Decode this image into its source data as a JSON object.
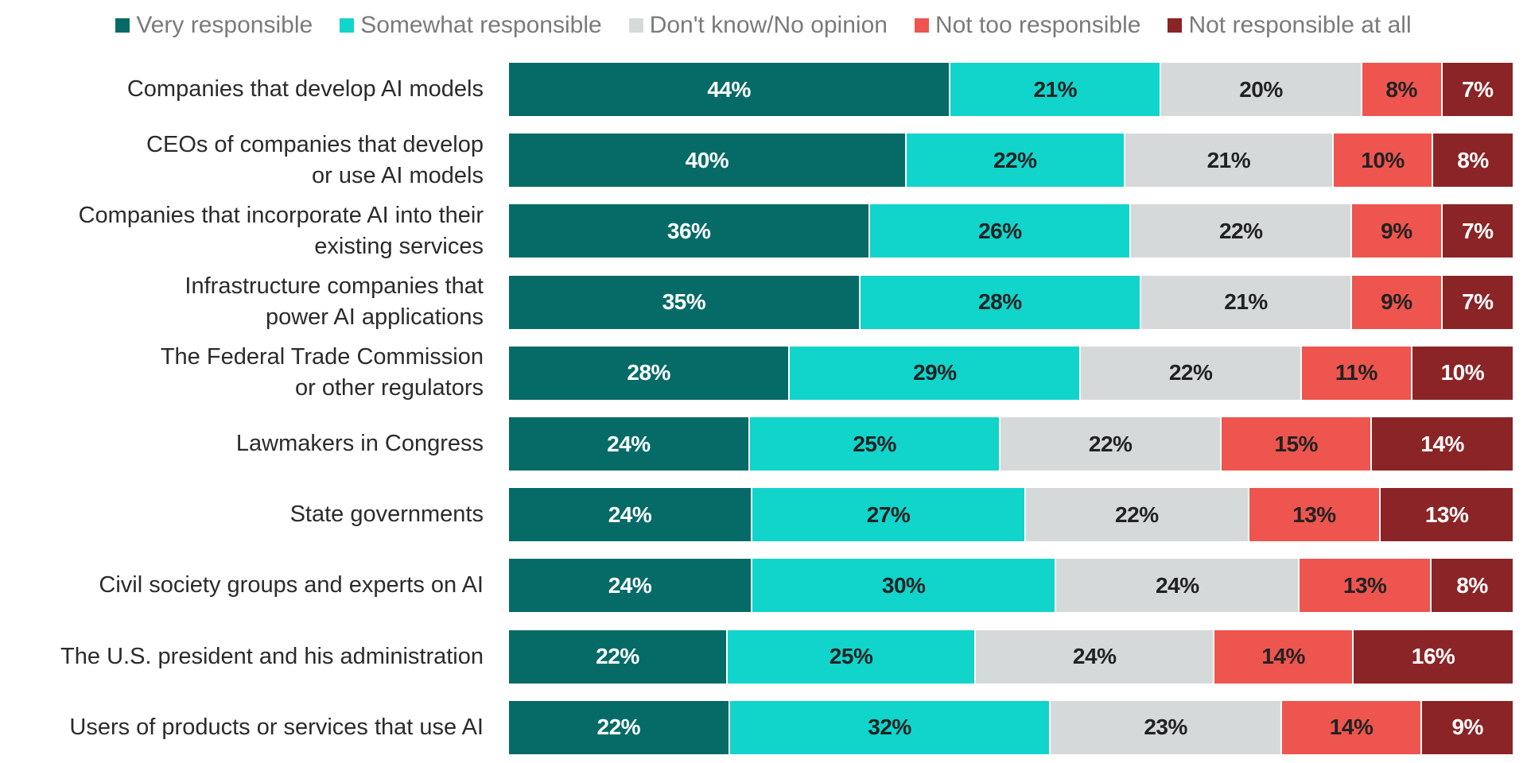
{
  "chart_data": {
    "type": "bar",
    "orientation": "horizontal",
    "stacked": true,
    "legend_position": "top",
    "series_names": [
      "Very responsible",
      "Somewhat responsible",
      "Don't know/No opinion",
      "Not too responsible",
      "Not responsible at all"
    ],
    "colors": [
      "#066b67",
      "#11d4cb",
      "#d6d9da",
      "#ee554e",
      "#8b2426"
    ],
    "label_colors": [
      "#ffffff",
      "#222222",
      "#222222",
      "#222222",
      "#ffffff"
    ],
    "categories": [
      [
        "Companies that develop AI models"
      ],
      [
        "CEOs of companies that develop",
        "or use AI models"
      ],
      [
        "Companies that incorporate AI into their",
        "existing services"
      ],
      [
        "Infrastructure companies that",
        "power AI applications"
      ],
      [
        "The Federal Trade Commission",
        "or other regulators"
      ],
      [
        "Lawmakers in Congress"
      ],
      [
        "State governments"
      ],
      [
        "Civil society groups and experts on AI"
      ],
      [
        "The U.S. president and his administration"
      ],
      [
        "Users of products or services that use AI"
      ]
    ],
    "values": [
      [
        44,
        21,
        20,
        8,
        7
      ],
      [
        40,
        22,
        21,
        10,
        8
      ],
      [
        36,
        26,
        22,
        9,
        7
      ],
      [
        35,
        28,
        21,
        9,
        7
      ],
      [
        28,
        29,
        22,
        11,
        10
      ],
      [
        24,
        25,
        22,
        15,
        14
      ],
      [
        24,
        27,
        22,
        13,
        13
      ],
      [
        24,
        30,
        24,
        13,
        8
      ],
      [
        22,
        25,
        24,
        14,
        16
      ],
      [
        22,
        32,
        23,
        14,
        9
      ]
    ],
    "value_suffix": "%"
  }
}
